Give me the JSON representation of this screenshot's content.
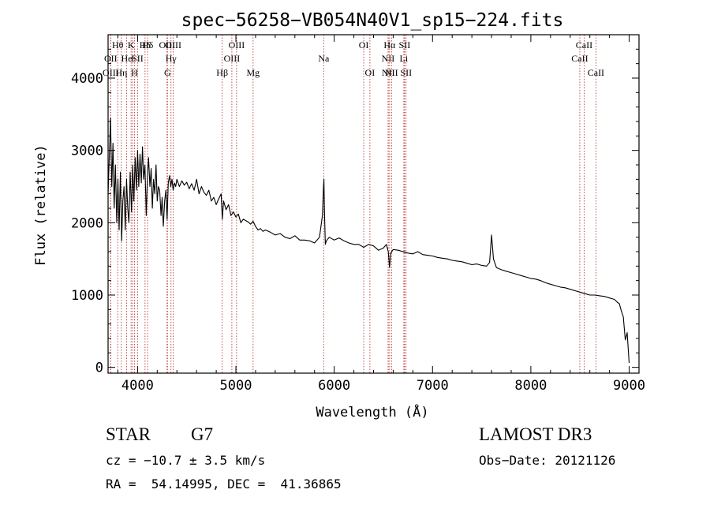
{
  "chart_data": {
    "type": "line",
    "title": "spec−56258−VB054N40V1_sp15−224.fits",
    "xlabel": "Wavelength (Å)",
    "ylabel": "Flux (relative)",
    "xlim": [
      3700,
      9100
    ],
    "ylim": [
      -80,
      4600
    ],
    "xticks": [
      4000,
      5000,
      6000,
      7000,
      8000,
      9000
    ],
    "yticks": [
      0,
      1000,
      2000,
      3000,
      4000
    ],
    "x": [
      3700,
      3712,
      3725,
      3738,
      3750,
      3762,
      3775,
      3788,
      3800,
      3812,
      3825,
      3838,
      3850,
      3862,
      3875,
      3888,
      3900,
      3912,
      3925,
      3938,
      3950,
      3962,
      3975,
      3988,
      4000,
      4012,
      4025,
      4038,
      4050,
      4062,
      4075,
      4088,
      4100,
      4112,
      4125,
      4138,
      4150,
      4162,
      4175,
      4188,
      4200,
      4212,
      4225,
      4238,
      4250,
      4262,
      4275,
      4288,
      4300,
      4312,
      4325,
      4338,
      4350,
      4362,
      4375,
      4388,
      4400,
      4425,
      4450,
      4475,
      4500,
      4525,
      4550,
      4575,
      4600,
      4625,
      4650,
      4675,
      4700,
      4725,
      4750,
      4775,
      4800,
      4825,
      4850,
      4862,
      4875,
      4900,
      4925,
      4950,
      4975,
      5000,
      5025,
      5050,
      5075,
      5100,
      5125,
      5150,
      5175,
      5200,
      5225,
      5250,
      5275,
      5300,
      5350,
      5400,
      5450,
      5500,
      5550,
      5600,
      5650,
      5700,
      5750,
      5800,
      5850,
      5880,
      5890,
      5895,
      5900,
      5905,
      5910,
      5920,
      5950,
      6000,
      6050,
      6100,
      6150,
      6200,
      6250,
      6300,
      6350,
      6400,
      6450,
      6500,
      6530,
      6550,
      6563,
      6575,
      6600,
      6650,
      6700,
      6750,
      6800,
      6850,
      6900,
      6950,
      7000,
      7050,
      7100,
      7150,
      7200,
      7250,
      7300,
      7350,
      7400,
      7450,
      7500,
      7550,
      7580,
      7600,
      7620,
      7650,
      7700,
      7750,
      7800,
      7850,
      7900,
      7950,
      8000,
      8050,
      8100,
      8150,
      8200,
      8250,
      8300,
      8350,
      8400,
      8450,
      8500,
      8550,
      8600,
      8650,
      8700,
      8750,
      8800,
      8850,
      8880,
      8900,
      8920,
      8940,
      8960,
      8980,
      9000
    ],
    "y": [
      2400,
      2900,
      3450,
      2500,
      3100,
      2200,
      2800,
      2000,
      2600,
      1900,
      2700,
      1750,
      2300,
      2500,
      1900,
      2600,
      2200,
      2000,
      2700,
      2150,
      2800,
      2300,
      2900,
      2450,
      3000,
      2500,
      2950,
      2550,
      3050,
      2600,
      2800,
      2100,
      2650,
      2900,
      2500,
      2750,
      2200,
      2600,
      2400,
      2800,
      2300,
      2500,
      2450,
      2100,
      2350,
      1950,
      2300,
      2450,
      2050,
      2550,
      2650,
      2500,
      2600,
      2450,
      2550,
      2500,
      2600,
      2500,
      2580,
      2520,
      2560,
      2470,
      2540,
      2450,
      2600,
      2400,
      2500,
      2420,
      2380,
      2450,
      2300,
      2350,
      2250,
      2330,
      2400,
      2050,
      2300,
      2180,
      2250,
      2100,
      2150,
      2080,
      2120,
      2000,
      2050,
      2030,
      2010,
      1980,
      2020,
      1950,
      1900,
      1920,
      1880,
      1900,
      1870,
      1830,
      1850,
      1800,
      1780,
      1820,
      1760,
      1760,
      1750,
      1720,
      1800,
      2100,
      2450,
      2600,
      2200,
      1950,
      1700,
      1750,
      1800,
      1760,
      1790,
      1750,
      1720,
      1700,
      1700,
      1660,
      1700,
      1680,
      1620,
      1650,
      1700,
      1600,
      1380,
      1580,
      1630,
      1620,
      1600,
      1580,
      1570,
      1600,
      1560,
      1550,
      1540,
      1520,
      1510,
      1500,
      1480,
      1470,
      1460,
      1440,
      1420,
      1430,
      1410,
      1400,
      1450,
      1830,
      1500,
      1380,
      1350,
      1330,
      1310,
      1290,
      1270,
      1250,
      1230,
      1220,
      1200,
      1170,
      1150,
      1130,
      1110,
      1100,
      1080,
      1060,
      1040,
      1020,
      1000,
      1000,
      990,
      980,
      960,
      940,
      900,
      880,
      780,
      700,
      380,
      480,
      60
    ],
    "lines": [
      {
        "label": "OII",
        "x": 3727,
        "row": 1
      },
      {
        "label": "OIII",
        "x": 3727,
        "row": 2
      },
      {
        "label": "Hθ",
        "x": 3798,
        "row": 0
      },
      {
        "label": "Hη",
        "x": 3835,
        "row": 2
      },
      {
        "label": "He",
        "x": 3889,
        "row": 1
      },
      {
        "label": "K",
        "x": 3934,
        "row": 0
      },
      {
        "label": "I",
        "x": 3950,
        "row": 1
      },
      {
        "label": "H",
        "x": 3968,
        "row": 2
      },
      {
        "label": "SII",
        "x": 4000,
        "row": 1
      },
      {
        "label": "Hδ",
        "x": 4076,
        "row": 0
      },
      {
        "label": "Hδ",
        "x": 4102,
        "row": 0
      },
      {
        "label": "OIII",
        "x": 4300,
        "row": 0
      },
      {
        "label": "G",
        "x": 4304,
        "row": 2
      },
      {
        "label": "Hγ",
        "x": 4340,
        "row": 1
      },
      {
        "label": "OIII",
        "x": 4363,
        "row": 0
      },
      {
        "label": "Hβ",
        "x": 4861,
        "row": 2
      },
      {
        "label": "OIII",
        "x": 4959,
        "row": 1
      },
      {
        "label": "OIII",
        "x": 5007,
        "row": 0
      },
      {
        "label": "Mg",
        "x": 5175,
        "row": 2
      },
      {
        "label": "Na",
        "x": 5893,
        "row": 1
      },
      {
        "label": "OI",
        "x": 6300,
        "row": 0
      },
      {
        "label": "OI",
        "x": 6363,
        "row": 2
      },
      {
        "label": "NII",
        "x": 6548,
        "row": 1
      },
      {
        "label": "NII",
        "x": 6550,
        "row": 2
      },
      {
        "label": "Hα",
        "x": 6563,
        "row": 0
      },
      {
        "label": "NII",
        "x": 6583,
        "row": 2
      },
      {
        "label": "SII",
        "x": 6716,
        "row": 0
      },
      {
        "label": "Li",
        "x": 6708,
        "row": 1
      },
      {
        "label": "SII",
        "x": 6731,
        "row": 2
      },
      {
        "label": "CaII",
        "x": 8498,
        "row": 1
      },
      {
        "label": "CaII",
        "x": 8542,
        "row": 0
      },
      {
        "label": "CaII",
        "x": 8662,
        "row": 2
      }
    ]
  },
  "info": {
    "object_class": "STAR",
    "subclass": "G7",
    "survey": "LAMOST DR3",
    "redshift": "cz = −10.7 ± 3.5 km/s",
    "obs_date": "Obs−Date: 20121126",
    "coords": "RA =  54.14995, DEC =  41.36865"
  }
}
